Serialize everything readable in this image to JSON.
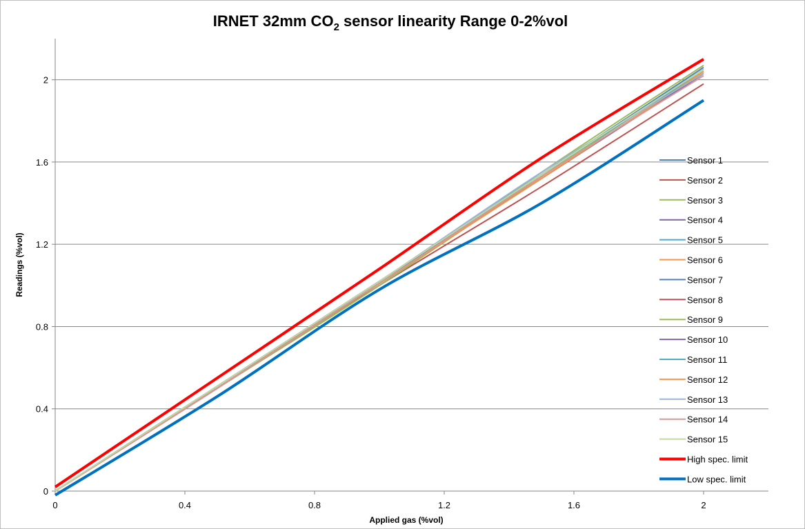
{
  "chart_data": {
    "type": "line",
    "title_main": "IRNET 32mm CO",
    "title_sub": "2",
    "title_rest": " sensor linearity Range 0-2%vol",
    "xlabel": "Applied gas (%vol)",
    "ylabel": "Readings (%vol)",
    "xlim": [
      0,
      2.2
    ],
    "ylim": [
      0,
      2.2
    ],
    "x_ticks": [
      "0",
      "0.4",
      "0.8",
      "1.2",
      "1.6",
      "2"
    ],
    "y_ticks": [
      "0",
      "0.4",
      "0.8",
      "1.2",
      "1.6",
      "2"
    ],
    "grid": "horizontal",
    "legend_position": "right",
    "x": [
      0,
      0.5,
      1,
      1.5,
      2
    ],
    "series": [
      {
        "name": "Sensor 1",
        "color": "#4f81bd",
        "width": 2,
        "values": [
          0,
          0.51,
          1.02,
          1.54,
          2.06
        ]
      },
      {
        "name": "Sensor 2",
        "color": "#c0504d",
        "width": 2,
        "values": [
          0,
          0.5,
          1.02,
          1.52,
          2.04
        ]
      },
      {
        "name": "Sensor 3",
        "color": "#9bbb59",
        "width": 2,
        "values": [
          0,
          0.5,
          1.0,
          1.55,
          2.07
        ]
      },
      {
        "name": "Sensor 4",
        "color": "#8064a2",
        "width": 2,
        "values": [
          0,
          0.5,
          1.01,
          1.52,
          2.03
        ]
      },
      {
        "name": "Sensor 5",
        "color": "#4bacc6",
        "width": 2,
        "values": [
          0,
          0.51,
          1.02,
          1.54,
          2.05
        ]
      },
      {
        "name": "Sensor 6",
        "color": "#f79646",
        "width": 2,
        "values": [
          0,
          0.5,
          1.01,
          1.52,
          2.04
        ]
      },
      {
        "name": "Sensor 7",
        "color": "#4f81bd",
        "width": 2,
        "values": [
          0,
          0.51,
          1.02,
          1.53,
          2.05
        ]
      },
      {
        "name": "Sensor 8",
        "color": "#c0504d",
        "width": 2,
        "values": [
          0,
          0.5,
          1.0,
          1.48,
          1.98
        ]
      },
      {
        "name": "Sensor 9",
        "color": "#9bbb59",
        "width": 2,
        "values": [
          0,
          0.5,
          1.0,
          1.53,
          2.05
        ]
      },
      {
        "name": "Sensor 10",
        "color": "#8064a2",
        "width": 2,
        "values": [
          0,
          0.5,
          1.01,
          1.52,
          2.03
        ]
      },
      {
        "name": "Sensor 11",
        "color": "#4bacc6",
        "width": 2,
        "values": [
          0,
          0.51,
          1.02,
          1.54,
          2.04
        ]
      },
      {
        "name": "Sensor 12",
        "color": "#f79646",
        "width": 2,
        "values": [
          0,
          0.5,
          1.01,
          1.52,
          2.04
        ]
      },
      {
        "name": "Sensor 13",
        "color": "#95b3d7",
        "width": 2,
        "values": [
          0,
          0.51,
          1.02,
          1.55,
          2.03
        ]
      },
      {
        "name": "Sensor 14",
        "color": "#d99694",
        "width": 2,
        "values": [
          0,
          0.5,
          1.01,
          1.53,
          2.02
        ]
      },
      {
        "name": "Sensor 15",
        "color": "#c3d69b",
        "width": 2,
        "values": [
          0,
          0.51,
          1.02,
          1.54,
          2.05
        ]
      },
      {
        "name": "High spec. limit",
        "color": "#ff0000",
        "width": 4,
        "values": [
          0.02,
          0.55,
          1.08,
          1.62,
          2.1
        ]
      },
      {
        "name": "Low spec. limit",
        "color": "#0070c0",
        "width": 4,
        "values": [
          -0.02,
          0.46,
          0.98,
          1.4,
          1.9
        ]
      }
    ]
  }
}
